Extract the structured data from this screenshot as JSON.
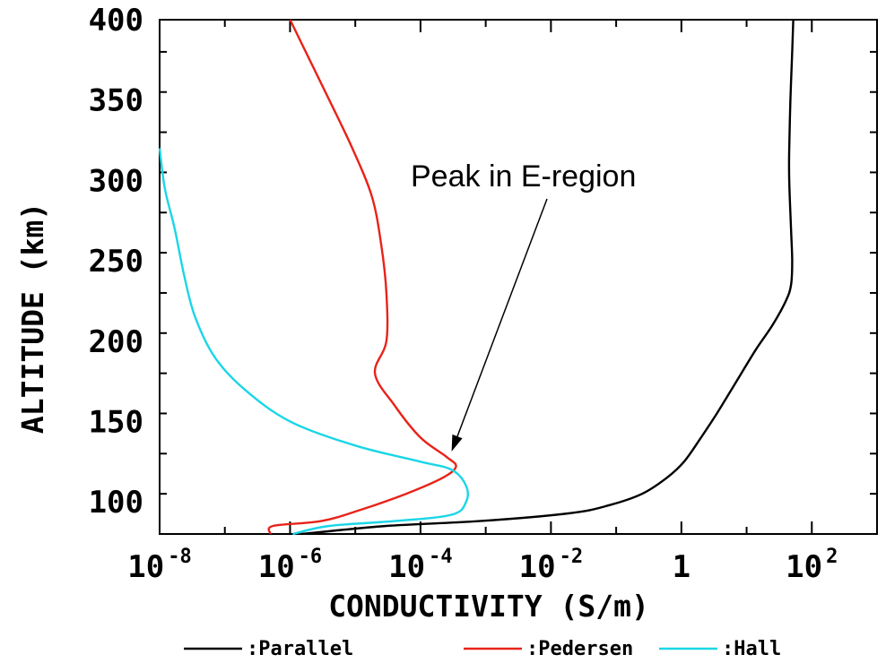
{
  "chart_data": {
    "type": "line",
    "title": "",
    "xlabel": "CONDUCTIVITY (S/m)",
    "ylabel": "ALTITUDE (km)",
    "x_scale": "log",
    "xlim": [
      1e-08,
      1000
    ],
    "ylim": [
      80,
      400
    ],
    "grid": false,
    "x_ticks": [
      {
        "value": 1e-08,
        "base": "10",
        "exp": "-8"
      },
      {
        "value": 1e-06,
        "base": "10",
        "exp": "-6"
      },
      {
        "value": 0.0001,
        "base": "10",
        "exp": "-4"
      },
      {
        "value": 0.01,
        "base": "10",
        "exp": "-2"
      },
      {
        "value": 1,
        "base": "1",
        "exp": ""
      },
      {
        "value": 100,
        "base": "10",
        "exp": "2"
      }
    ],
    "y_ticks": [
      100,
      150,
      200,
      250,
      300,
      350,
      400
    ],
    "legend": {
      "placement": "bottom",
      "entries": [
        {
          "label": ":Parallel",
          "color": "#000000"
        },
        {
          "label": ":Pedersen",
          "color": "#e8231a"
        },
        {
          "label": ":Hall",
          "color": "#1ad6e6"
        }
      ]
    },
    "annotations": [
      {
        "text": "Peak in E-region",
        "points_to": {
          "x": 0.0003,
          "y": 128
        }
      }
    ],
    "series": [
      {
        "name": ":Parallel",
        "color": "#000000",
        "points": [
          {
            "x": 1.5e-06,
            "y": 80
          },
          {
            "x": 3e-05,
            "y": 85
          },
          {
            "x": 0.0008,
            "y": 88
          },
          {
            "x": 0.02,
            "y": 93
          },
          {
            "x": 0.08,
            "y": 98
          },
          {
            "x": 0.25,
            "y": 105
          },
          {
            "x": 0.6,
            "y": 115
          },
          {
            "x": 1.1,
            "y": 125
          },
          {
            "x": 2,
            "y": 140
          },
          {
            "x": 3.5,
            "y": 155
          },
          {
            "x": 7,
            "y": 175
          },
          {
            "x": 14,
            "y": 195
          },
          {
            "x": 25,
            "y": 210
          },
          {
            "x": 40,
            "y": 225
          },
          {
            "x": 48,
            "y": 235
          },
          {
            "x": 50,
            "y": 250
          },
          {
            "x": 48,
            "y": 270
          },
          {
            "x": 45,
            "y": 300
          },
          {
            "x": 45,
            "y": 320
          },
          {
            "x": 47,
            "y": 350
          },
          {
            "x": 50,
            "y": 380
          },
          {
            "x": 52,
            "y": 400
          }
        ]
      },
      {
        "name": ":Pedersen",
        "color": "#e8231a",
        "points": [
          {
            "x": 5e-07,
            "y": 80
          },
          {
            "x": 5.5e-07,
            "y": 85
          },
          {
            "x": 3e-06,
            "y": 88
          },
          {
            "x": 1.2e-05,
            "y": 95
          },
          {
            "x": 6e-05,
            "y": 105
          },
          {
            "x": 0.00022,
            "y": 115
          },
          {
            "x": 0.00035,
            "y": 122
          },
          {
            "x": 0.00025,
            "y": 128
          },
          {
            "x": 0.0001,
            "y": 140
          },
          {
            "x": 4e-05,
            "y": 160
          },
          {
            "x": 2e-05,
            "y": 180
          },
          {
            "x": 3e-05,
            "y": 200
          },
          {
            "x": 3e-05,
            "y": 230
          },
          {
            "x": 2.5e-05,
            "y": 260
          },
          {
            "x": 1.8e-05,
            "y": 290
          },
          {
            "x": 9e-06,
            "y": 320
          },
          {
            "x": 4e-06,
            "y": 350
          },
          {
            "x": 2e-06,
            "y": 375
          },
          {
            "x": 1e-06,
            "y": 400
          }
        ]
      },
      {
        "name": ":Hall",
        "color": "#1ad6e6",
        "points": [
          {
            "x": 1.1e-06,
            "y": 80
          },
          {
            "x": 4e-06,
            "y": 85
          },
          {
            "x": 4e-05,
            "y": 88
          },
          {
            "x": 0.0003,
            "y": 92
          },
          {
            "x": 0.0005,
            "y": 100
          },
          {
            "x": 0.0005,
            "y": 110
          },
          {
            "x": 0.0003,
            "y": 120
          },
          {
            "x": 0.0001,
            "y": 125
          },
          {
            "x": 1e-05,
            "y": 135
          },
          {
            "x": 1e-06,
            "y": 150
          },
          {
            "x": 2e-07,
            "y": 170
          },
          {
            "x": 7e-08,
            "y": 190
          },
          {
            "x": 3.5e-08,
            "y": 215
          },
          {
            "x": 2.4e-08,
            "y": 240
          },
          {
            "x": 1.7e-08,
            "y": 270
          },
          {
            "x": 1.2e-08,
            "y": 295
          },
          {
            "x": 1e-08,
            "y": 320
          }
        ]
      }
    ]
  }
}
